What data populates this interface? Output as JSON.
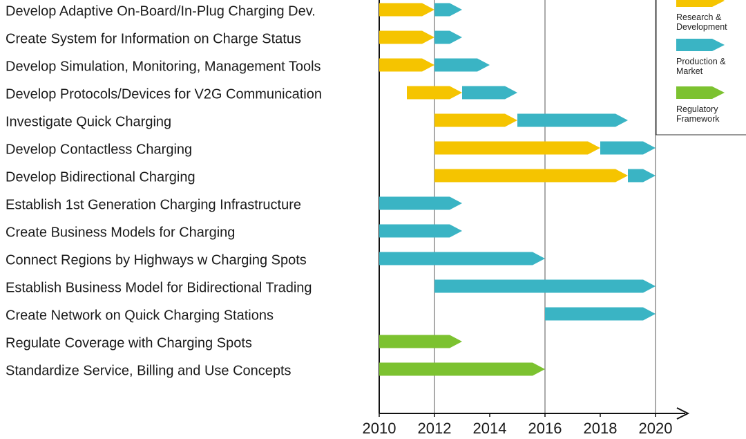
{
  "chart_data": {
    "type": "gantt",
    "series": [
      {
        "name": "Research & Development",
        "color": "#f5c400"
      },
      {
        "name": "Production & Market",
        "color": "#3ab4c4"
      },
      {
        "name": "Regulatory Framework",
        "color": "#7cc230"
      }
    ],
    "tasks": [
      {
        "name": "Develop Adaptive On-Board/In-Plug Charging Dev.",
        "segments": [
          {
            "series": 0,
            "start": 2010,
            "end": 2012
          },
          {
            "series": 1,
            "start": 2012,
            "end": 2013
          }
        ]
      },
      {
        "name": "Create System for Information on Charge Status",
        "segments": [
          {
            "series": 0,
            "start": 2010,
            "end": 2012
          },
          {
            "series": 1,
            "start": 2012,
            "end": 2013
          }
        ]
      },
      {
        "name": "Develop Simulation, Monitoring, Management Tools",
        "segments": [
          {
            "series": 0,
            "start": 2010,
            "end": 2012
          },
          {
            "series": 1,
            "start": 2012,
            "end": 2014
          }
        ]
      },
      {
        "name": "Develop Protocols/Devices for V2G Communication",
        "segments": [
          {
            "series": 0,
            "start": 2011,
            "end": 2013
          },
          {
            "series": 1,
            "start": 2013,
            "end": 2015
          }
        ]
      },
      {
        "name": "Investigate Quick Charging",
        "segments": [
          {
            "series": 0,
            "start": 2012,
            "end": 2015
          },
          {
            "series": 1,
            "start": 2015,
            "end": 2019
          }
        ]
      },
      {
        "name": "Develop Contactless Charging",
        "segments": [
          {
            "series": 0,
            "start": 2012,
            "end": 2018
          },
          {
            "series": 1,
            "start": 2018,
            "end": 2020
          }
        ]
      },
      {
        "name": "Develop Bidirectional Charging",
        "segments": [
          {
            "series": 0,
            "start": 2012,
            "end": 2019
          },
          {
            "series": 1,
            "start": 2019,
            "end": 2020
          }
        ]
      },
      {
        "name": "Establish 1st Generation Charging Infrastructure",
        "segments": [
          {
            "series": 1,
            "start": 2010,
            "end": 2013
          }
        ]
      },
      {
        "name": "Create Business Models for Charging",
        "segments": [
          {
            "series": 1,
            "start": 2010,
            "end": 2013
          }
        ]
      },
      {
        "name": "Connect Regions by Highways w Charging Spots",
        "segments": [
          {
            "series": 1,
            "start": 2010,
            "end": 2016
          }
        ]
      },
      {
        "name": "Establish Business Model for Bidirectional Trading",
        "segments": [
          {
            "series": 1,
            "start": 2012,
            "end": 2020
          }
        ]
      },
      {
        "name": "Create Network on Quick Charging Stations",
        "segments": [
          {
            "series": 1,
            "start": 2016,
            "end": 2020
          }
        ]
      },
      {
        "name": "Regulate Coverage with Charging Spots",
        "segments": [
          {
            "series": 2,
            "start": 2010,
            "end": 2013
          }
        ]
      },
      {
        "name": "Standardize Service, Billing and Use Concepts",
        "segments": [
          {
            "series": 2,
            "start": 2010,
            "end": 2016
          }
        ]
      }
    ],
    "xlim": [
      2010,
      2021
    ],
    "xticks": [
      2010,
      2012,
      2014,
      2016,
      2018,
      2020
    ],
    "gridlines": [
      2012,
      2016,
      2020
    ]
  }
}
